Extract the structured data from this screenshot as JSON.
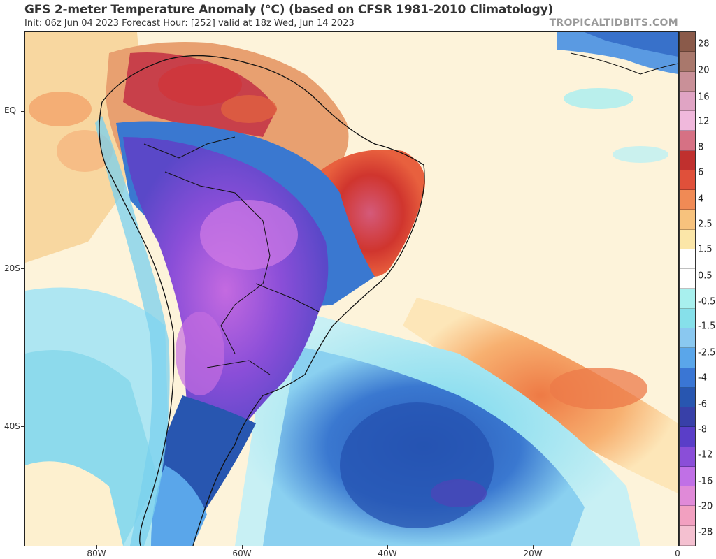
{
  "header": {
    "title": "GFS 2-meter Temperature Anomaly (°C) (based on CFSR 1981-2010 Climatology)",
    "subtitle": "Init: 06z Jun 04 2023   Forecast Hour: [252]   valid at 18z Wed, Jun 14 2023",
    "credit": "TROPICALTIDBITS.COM"
  },
  "map": {
    "region": "South America and South Atlantic",
    "lat_labels": [
      "EQ",
      "20S",
      "40S"
    ],
    "lon_labels": [
      "80W",
      "60W",
      "40W",
      "20W",
      "0"
    ]
  },
  "colorbar": {
    "labels": [
      "28",
      "20",
      "16",
      "12",
      "8",
      "6",
      "4",
      "2.5",
      "1.5",
      "0.5",
      "-0.5",
      "-1.5",
      "-2.5",
      "-4",
      "-6",
      "-8",
      "-12",
      "-16",
      "-20",
      "-28"
    ],
    "colors": [
      "#8a5a4a",
      "#a9786c",
      "#c99098",
      "#e0a4c4",
      "#f0b8dc",
      "#d67184",
      "#c0302e",
      "#e0503a",
      "#f08a55",
      "#f7c27d",
      "#fbe6a8",
      "#ffffff",
      "#ffffff",
      "#a8f0ee",
      "#86e0ea",
      "#8ac8f0",
      "#5aa6ea",
      "#3a76d4",
      "#2856b0",
      "#3840a8",
      "#5a3ec8",
      "#8a4ed8",
      "#c070e6",
      "#e08ad8",
      "#f2a0c0",
      "#f4c0d0"
    ]
  }
}
